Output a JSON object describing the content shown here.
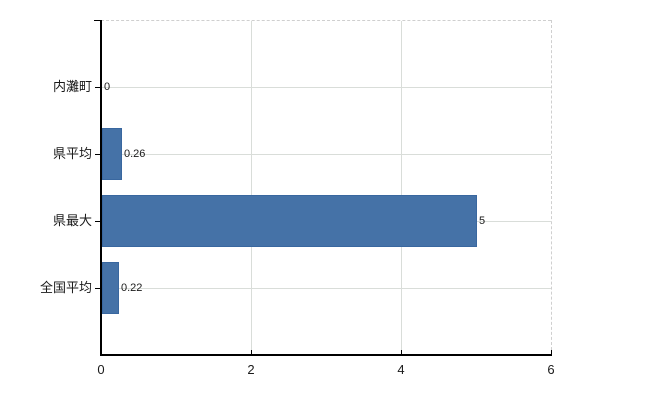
{
  "chart_data": {
    "type": "bar",
    "orientation": "horizontal",
    "title": "",
    "xlabel": "",
    "ylabel": "",
    "categories": [
      "内灘町",
      "県平均",
      "県最大",
      "全国平均"
    ],
    "values": [
      0,
      0.26,
      5,
      0.22
    ],
    "value_labels": [
      "0",
      "0.26",
      "5",
      "0.22"
    ],
    "x_ticks": [
      0,
      2,
      4,
      6
    ],
    "x_tick_labels": [
      "0",
      "2",
      "4",
      "6"
    ],
    "xlim": [
      0,
      6
    ],
    "grid": true,
    "legend_position": "none",
    "bar_color": "#4572a7",
    "bar_border_color": "#39679f",
    "gridline_color": "#d9ddd9",
    "border_dash_color": "#cfcfcf",
    "axis_color": "#000000",
    "text_color": "#1a1a1a",
    "background_color": "#ffffff"
  }
}
